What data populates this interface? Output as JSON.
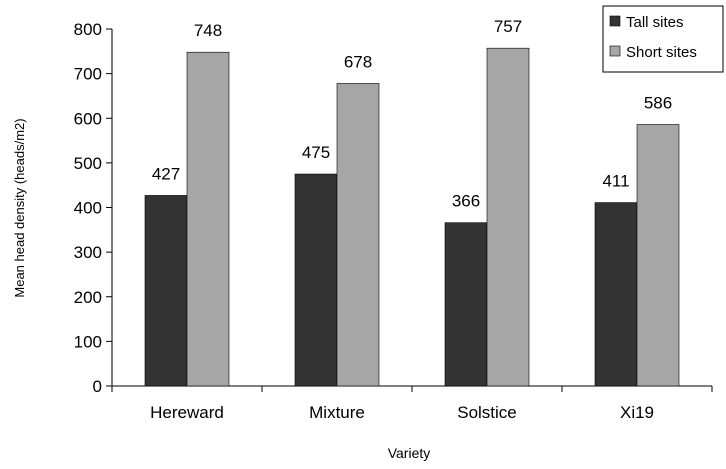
{
  "chart_data": {
    "type": "bar",
    "title": "",
    "xlabel": "Variety",
    "ylabel": "Mean head density (heads/m2)",
    "categories": [
      "Hereward",
      "Mixture",
      "Solstice",
      "Xi19"
    ],
    "series": [
      {
        "name": "Tall sites",
        "values": [
          427,
          475,
          366,
          411
        ],
        "color": "#333333"
      },
      {
        "name": "Short sites",
        "values": [
          748,
          678,
          757,
          586
        ],
        "color": "#a6a6a6"
      }
    ],
    "ylim": [
      0,
      800
    ],
    "yticks": [
      0,
      100,
      200,
      300,
      400,
      500,
      600,
      700,
      800
    ],
    "grid": false,
    "legend_position": "top-right",
    "data_labels": true
  }
}
